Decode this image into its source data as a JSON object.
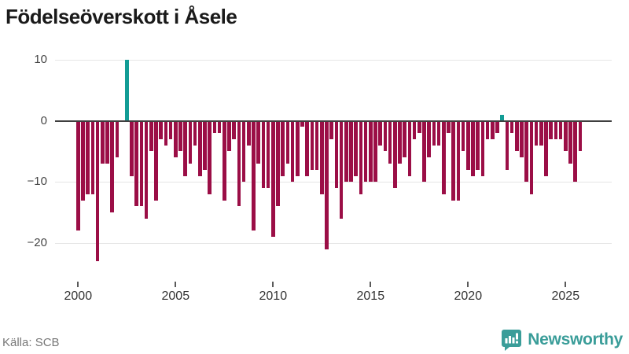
{
  "title": "Födelseöverskott i Åsele",
  "source_label": "Källa: SCB",
  "brand": {
    "name": "Newsworthy",
    "color": "#3a9d99",
    "logo_icon": "speech-bubble-bar-chart-icon"
  },
  "colors": {
    "bar_negative": "#9b0e46",
    "bar_positive": "#129c95",
    "zero_line": "#3f3f3f",
    "gridline": "#e6e6e6",
    "axis_text": "#333333",
    "source_text": "#787878",
    "title_text": "#1a1a1a"
  },
  "chart_data": {
    "type": "bar",
    "title": "Födelseöverskott i Åsele",
    "xlabel": "",
    "ylabel": "",
    "legend": false,
    "grid": true,
    "ylim": [
      -26,
      10
    ],
    "yticks": [
      10,
      0,
      -10,
      -20
    ],
    "xticks": [
      "2000",
      "2005",
      "2010",
      "2015",
      "2020",
      "2025"
    ],
    "frequency": "quarterly",
    "categories": [
      "2000 Q1",
      "2000 Q2",
      "2000 Q3",
      "2000 Q4",
      "2001 Q1",
      "2001 Q2",
      "2001 Q3",
      "2001 Q4",
      "2002 Q1",
      "2002 Q2",
      "2002 Q3",
      "2002 Q4",
      "2003 Q1",
      "2003 Q2",
      "2003 Q3",
      "2003 Q4",
      "2004 Q1",
      "2004 Q2",
      "2004 Q3",
      "2004 Q4",
      "2005 Q1",
      "2005 Q2",
      "2005 Q3",
      "2005 Q4",
      "2006 Q1",
      "2006 Q2",
      "2006 Q3",
      "2006 Q4",
      "2007 Q1",
      "2007 Q2",
      "2007 Q3",
      "2007 Q4",
      "2008 Q1",
      "2008 Q2",
      "2008 Q3",
      "2008 Q4",
      "2009 Q1",
      "2009 Q2",
      "2009 Q3",
      "2009 Q4",
      "2010 Q1",
      "2010 Q2",
      "2010 Q3",
      "2010 Q4",
      "2011 Q1",
      "2011 Q2",
      "2011 Q3",
      "2011 Q4",
      "2012 Q1",
      "2012 Q2",
      "2012 Q3",
      "2012 Q4",
      "2013 Q1",
      "2013 Q2",
      "2013 Q3",
      "2013 Q4",
      "2014 Q1",
      "2014 Q2",
      "2014 Q3",
      "2014 Q4",
      "2015 Q1",
      "2015 Q2",
      "2015 Q3",
      "2015 Q4",
      "2016 Q1",
      "2016 Q2",
      "2016 Q3",
      "2016 Q4",
      "2017 Q1",
      "2017 Q2",
      "2017 Q3",
      "2017 Q4",
      "2018 Q1",
      "2018 Q2",
      "2018 Q3",
      "2018 Q4",
      "2019 Q1",
      "2019 Q2",
      "2019 Q3",
      "2019 Q4",
      "2020 Q1",
      "2020 Q2",
      "2020 Q3",
      "2020 Q4",
      "2021 Q1",
      "2021 Q2",
      "2021 Q3",
      "2021 Q4",
      "2022 Q1",
      "2022 Q2",
      "2022 Q3",
      "2022 Q4",
      "2023 Q1",
      "2023 Q2",
      "2023 Q3",
      "2023 Q4",
      "2024 Q1",
      "2024 Q2",
      "2024 Q3",
      "2024 Q4",
      "2025 Q1",
      "2025 Q2",
      "2025 Q3",
      "2025 Q4"
    ],
    "values": [
      -18,
      -13,
      -12,
      -12,
      -23,
      -7,
      -7,
      -15,
      -6,
      0,
      10,
      -9,
      -14,
      -14,
      -16,
      -5,
      -13,
      -3,
      -4,
      -3,
      -6,
      -5,
      -9,
      -7,
      -4,
      -9,
      -8,
      -12,
      -2,
      -2,
      -13,
      -5,
      -3,
      -14,
      -10,
      -4,
      -18,
      -7,
      -11,
      -11,
      -19,
      -14,
      -9,
      -7,
      -10,
      -9,
      -1,
      -9,
      -8,
      -8,
      -12,
      -21,
      -3,
      -11,
      -16,
      -10,
      -10,
      -9,
      -12,
      -10,
      -10,
      -10,
      -4,
      -5,
      -7,
      -11,
      -7,
      -6,
      -9,
      -3,
      -2,
      -10,
      -6,
      -4,
      -4,
      -12,
      -2,
      -13,
      -13,
      -5,
      -8,
      -9,
      -8,
      -9,
      -3,
      -3,
      -2,
      1,
      -8,
      -2,
      -5,
      -6,
      -10,
      -12,
      -4,
      -4,
      -9,
      -3,
      -3,
      -3,
      -5,
      -7,
      -10,
      -5
    ]
  }
}
